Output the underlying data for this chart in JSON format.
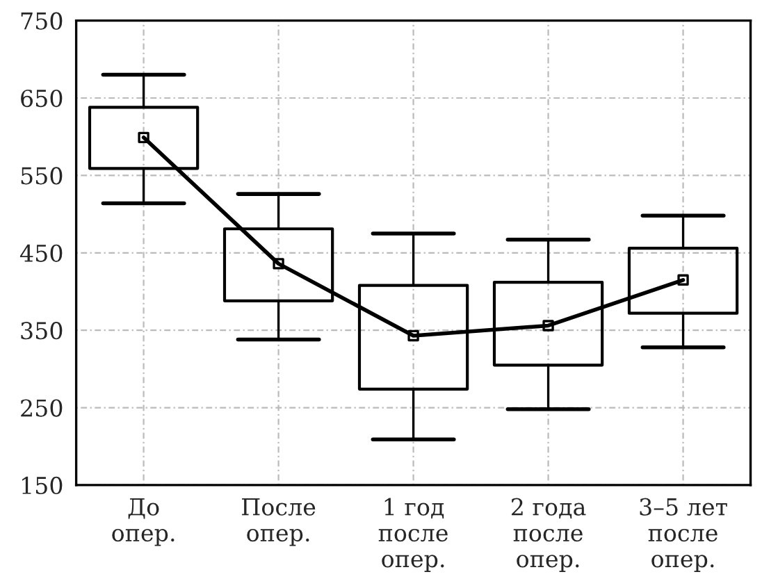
{
  "chart_data": {
    "type": "box",
    "categories": [
      "До\nопер.",
      "После\nопер.",
      "1 год\nпосле\nопер.",
      "2 года\nпосле\nопер.",
      "3–5 лет\nпосле\nопер."
    ],
    "boxes": [
      {
        "low": 514,
        "q1": 559,
        "median": 599,
        "q3": 638,
        "high": 680
      },
      {
        "low": 338,
        "q1": 388,
        "median": 436,
        "q3": 481,
        "high": 526
      },
      {
        "low": 209,
        "q1": 274,
        "median": 343,
        "q3": 408,
        "high": 475
      },
      {
        "low": 248,
        "q1": 305,
        "median": 356,
        "q3": 412,
        "high": 467
      },
      {
        "low": 328,
        "q1": 372,
        "median": 415,
        "q3": 456,
        "high": 498
      }
    ],
    "series": [
      {
        "type": "line",
        "color": "#000000",
        "values": [
          599,
          436,
          343,
          356,
          415
        ]
      }
    ],
    "ylim": [
      150,
      750
    ],
    "yticks": [
      150,
      250,
      350,
      450,
      550,
      650,
      750
    ],
    "grid": true
  }
}
